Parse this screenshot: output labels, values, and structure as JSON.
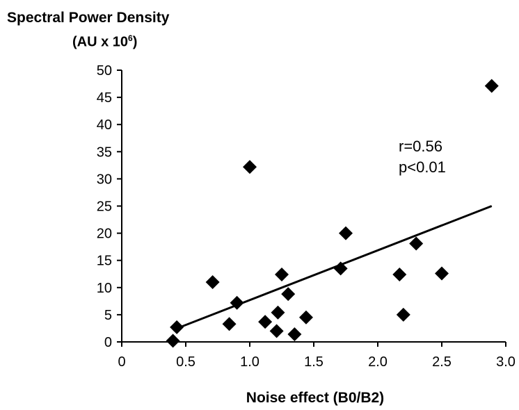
{
  "chart_data": {
    "type": "scatter",
    "ylabel_line1": "Spectral Power Density",
    "ylabel_line2_main": "(AU x 10",
    "ylabel_line2_sup": "6",
    "ylabel_line2_end": ")",
    "xlabel": "Noise effect  (B0/B2)",
    "xlim": [
      0,
      3.0
    ],
    "ylim": [
      0,
      50
    ],
    "x_ticks": [
      "0",
      "0.5",
      "1.0",
      "1.5",
      "2.0",
      "2.5",
      "3.0"
    ],
    "y_ticks": [
      "0",
      "5",
      "10",
      "15",
      "20",
      "25",
      "30",
      "35",
      "40",
      "45",
      "50"
    ],
    "grid": false,
    "points": [
      {
        "x": 0.4,
        "y": 0.2
      },
      {
        "x": 0.43,
        "y": 2.7
      },
      {
        "x": 0.71,
        "y": 11.0
      },
      {
        "x": 0.84,
        "y": 3.3
      },
      {
        "x": 0.9,
        "y": 7.2
      },
      {
        "x": 1.0,
        "y": 32.2
      },
      {
        "x": 1.12,
        "y": 3.7
      },
      {
        "x": 1.21,
        "y": 2.0
      },
      {
        "x": 1.22,
        "y": 5.4
      },
      {
        "x": 1.25,
        "y": 12.4
      },
      {
        "x": 1.3,
        "y": 8.8
      },
      {
        "x": 1.35,
        "y": 1.4
      },
      {
        "x": 1.44,
        "y": 4.5
      },
      {
        "x": 1.71,
        "y": 13.5
      },
      {
        "x": 1.75,
        "y": 20.0
      },
      {
        "x": 2.17,
        "y": 12.4
      },
      {
        "x": 2.2,
        "y": 5.0
      },
      {
        "x": 2.3,
        "y": 18.1
      },
      {
        "x": 2.5,
        "y": 12.6
      },
      {
        "x": 2.89,
        "y": 47.1
      }
    ],
    "trendline": {
      "x": [
        0.4,
        2.89
      ],
      "y": [
        2.2,
        25.0
      ]
    },
    "annotations": [
      "r=0.56",
      "p<0.01"
    ]
  }
}
